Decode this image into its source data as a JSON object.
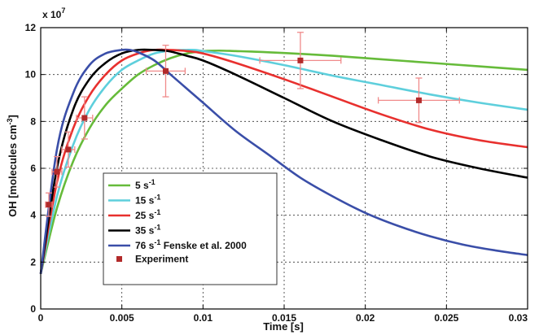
{
  "chart_data": {
    "type": "line",
    "xlabel": "Time [s]",
    "ylabel": "OH [molecules cm",
    "ylabel_sup": "-3",
    "ylabel_close": "]",
    "y_multiplier": "x 10",
    "y_multiplier_exp": "7",
    "xlim": [
      0,
      0.03
    ],
    "ylim": [
      0,
      12
    ],
    "x_ticks": [
      0,
      0.005,
      0.01,
      0.015,
      0.02,
      0.025,
      0.03
    ],
    "x_tick_labels": [
      "0",
      "0.005",
      "0.01",
      "0.015",
      "0.02",
      "0.025",
      "0.03"
    ],
    "y_ticks": [
      0,
      2,
      4,
      6,
      8,
      10,
      12
    ],
    "y_tick_labels": [
      "0",
      "2",
      "4",
      "6",
      "8",
      "10",
      "12"
    ],
    "grid": true,
    "legend_position": "bottom-left",
    "series": [
      {
        "name": "5 s",
        "name_sup": "-1",
        "name_suffix": "",
        "color": "#66bb3a",
        "x": [
          0,
          0.001,
          0.002,
          0.003,
          0.004,
          0.005,
          0.006,
          0.007,
          0.008,
          0.009,
          0.01,
          0.011,
          0.012,
          0.013,
          0.015,
          0.018,
          0.021,
          0.024,
          0.027,
          0.03
        ],
        "y": [
          1.5,
          4.3,
          6.3,
          7.7,
          8.7,
          9.4,
          10.0,
          10.4,
          10.7,
          10.9,
          11.0,
          11.02,
          11.0,
          10.98,
          10.92,
          10.8,
          10.65,
          10.5,
          10.35,
          10.2
        ]
      },
      {
        "name": "15 s",
        "name_sup": "-1",
        "name_suffix": "",
        "color": "#5ecfdc",
        "x": [
          0,
          0.001,
          0.002,
          0.003,
          0.004,
          0.005,
          0.006,
          0.007,
          0.008,
          0.009,
          0.0095,
          0.01,
          0.012,
          0.015,
          0.018,
          0.021,
          0.024,
          0.027,
          0.03
        ],
        "y": [
          1.5,
          4.8,
          7.0,
          8.5,
          9.5,
          10.2,
          10.6,
          10.9,
          11.02,
          11.05,
          11.05,
          11.0,
          10.8,
          10.4,
          9.95,
          9.55,
          9.15,
          8.8,
          8.5
        ]
      },
      {
        "name": "25 s",
        "name_sup": "-1",
        "name_suffix": "",
        "color": "#e8302e",
        "x": [
          0,
          0.001,
          0.002,
          0.003,
          0.004,
          0.005,
          0.006,
          0.007,
          0.008,
          0.0085,
          0.009,
          0.01,
          0.012,
          0.015,
          0.018,
          0.021,
          0.024,
          0.027,
          0.03
        ],
        "y": [
          1.5,
          5.4,
          7.7,
          9.1,
          10.0,
          10.6,
          10.9,
          11.05,
          11.05,
          11.03,
          11.0,
          10.9,
          10.5,
          9.8,
          9.05,
          8.3,
          7.65,
          7.2,
          6.9
        ]
      },
      {
        "name": "35 s",
        "name_sup": "-1",
        "name_suffix": "",
        "color": "#000000",
        "x": [
          0,
          0.001,
          0.002,
          0.003,
          0.004,
          0.005,
          0.006,
          0.007,
          0.0075,
          0.008,
          0.009,
          0.01,
          0.012,
          0.015,
          0.018,
          0.021,
          0.024,
          0.027,
          0.03
        ],
        "y": [
          1.5,
          6.0,
          8.5,
          9.8,
          10.5,
          10.9,
          11.05,
          11.05,
          11.03,
          10.98,
          10.8,
          10.6,
          10.0,
          9.0,
          8.0,
          7.2,
          6.5,
          6.0,
          5.6
        ]
      },
      {
        "name": "76 s",
        "name_sup": "-1",
        "name_suffix": " Fenske et al. 2000",
        "color": "#3a4ea8",
        "x": [
          0,
          0.001,
          0.002,
          0.003,
          0.004,
          0.005,
          0.0055,
          0.006,
          0.007,
          0.008,
          0.009,
          0.01,
          0.012,
          0.014,
          0.016,
          0.018,
          0.02,
          0.022,
          0.024,
          0.026,
          0.028,
          0.03
        ],
        "y": [
          1.5,
          6.8,
          9.2,
          10.4,
          10.9,
          11.05,
          11.05,
          10.95,
          10.6,
          10.0,
          9.4,
          8.8,
          7.6,
          6.6,
          5.6,
          4.8,
          4.1,
          3.55,
          3.1,
          2.75,
          2.5,
          2.3
        ]
      }
    ],
    "experiment": {
      "name": "Experiment",
      "color": "#b22a2a",
      "errorbar_color": "#f08a8a",
      "x": [
        0.0005,
        0.001,
        0.0017,
        0.0027,
        0.0077,
        0.016,
        0.0233
      ],
      "y": [
        4.45,
        5.85,
        6.8,
        8.15,
        10.15,
        10.6,
        8.9
      ],
      "x_err": [
        0.0002,
        0.0003,
        0.0004,
        0.0005,
        0.0012,
        0.0025,
        0.0025
      ],
      "y_err": [
        0.5,
        0.65,
        0.75,
        0.9,
        1.1,
        1.2,
        0.95
      ]
    }
  }
}
